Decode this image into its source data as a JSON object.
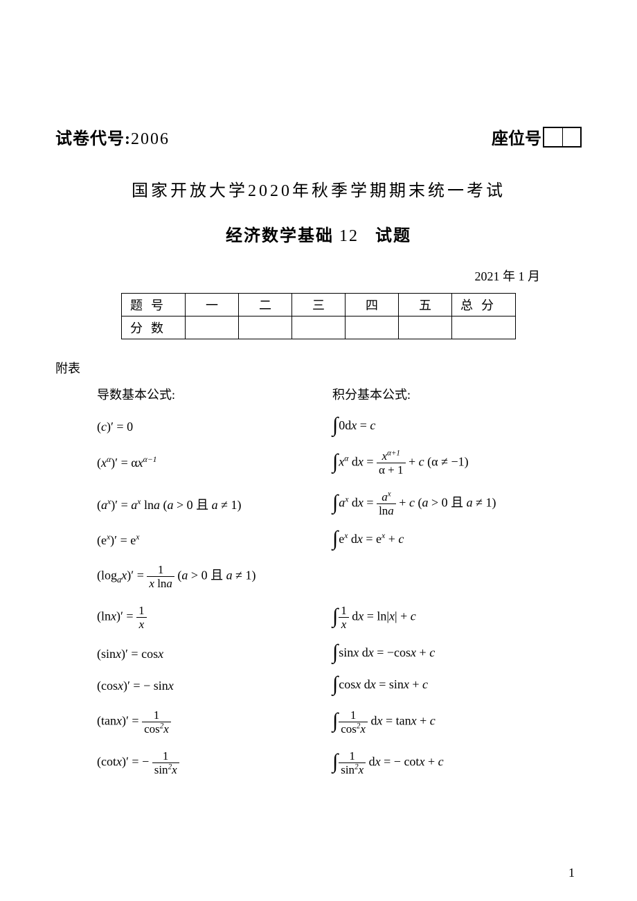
{
  "header": {
    "paper_code_label": "试卷代号:",
    "paper_code_number": "2006",
    "seat_label": "座位号"
  },
  "titles": {
    "line1": "国家开放大学2020年秋季学期期末统一考试",
    "line2a": "经济数学基础",
    "line2b": "12",
    "line2c": "试题",
    "date": "2021 年 1 月"
  },
  "score_table": {
    "row1_label": "题号",
    "row2_label": "分数",
    "cols": [
      "一",
      "二",
      "三",
      "四",
      "五"
    ],
    "total_label": "总分"
  },
  "fubiao": "附表",
  "headers": {
    "left": "导数基本公式:",
    "right": "积分基本公式:"
  },
  "pagenum": "1"
}
